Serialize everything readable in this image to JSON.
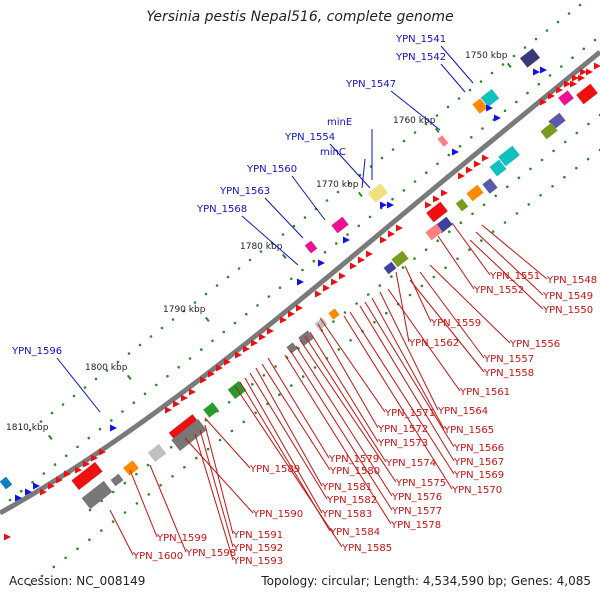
{
  "title": "Yersinia pestis Nepal516, complete genome",
  "accession": "Accession: NC_008149",
  "summary": "Topology: circular; Length: 4,534,590 bp; Genes: 4,085",
  "ticks": [
    "1750 kbp",
    "1760 kbp",
    "1770 kbp",
    "1780 kbp",
    "1790 kbp",
    "1800 kbp",
    "1810 kbp"
  ],
  "outer_labels": [
    "YPN_1541",
    "YPN_1542",
    "YPN_1547",
    "minE",
    "YPN_1554",
    "minC",
    "YPN_1560",
    "YPN_1563",
    "YPN_1568",
    "YPN_1596"
  ],
  "inner_labels": [
    "YPN_1548",
    "YPN_1549",
    "YPN_1550",
    "YPN_1551",
    "YPN_1552",
    "YPN_1556",
    "YPN_1557",
    "YPN_1558",
    "YPN_1559",
    "YPN_1562",
    "YPN_1561",
    "YPN_1564",
    "YPN_1565",
    "YPN_1566",
    "YPN_1567",
    "YPN_1569",
    "YPN_1570",
    "YPN_1571",
    "YPN_1572",
    "YPN_1573",
    "YPN_1574",
    "YPN_1575",
    "YPN_1576",
    "YPN_1577",
    "YPN_1578",
    "YPN_1579",
    "YPN_1580",
    "YPN_1581",
    "YPN_1582",
    "YPN_1583",
    "YPN_1584",
    "YPN_1585",
    "YPN_1589",
    "YPN_1590",
    "YPN_1591",
    "YPN_1592",
    "YPN_1593",
    "YPN_1598",
    "YPN_1599",
    "YPN_1600"
  ],
  "colors": {
    "outer_label": "#1010cc",
    "inner_label": "#cc1010",
    "backbone": "#888888",
    "tick": "#2a8a2a"
  }
}
